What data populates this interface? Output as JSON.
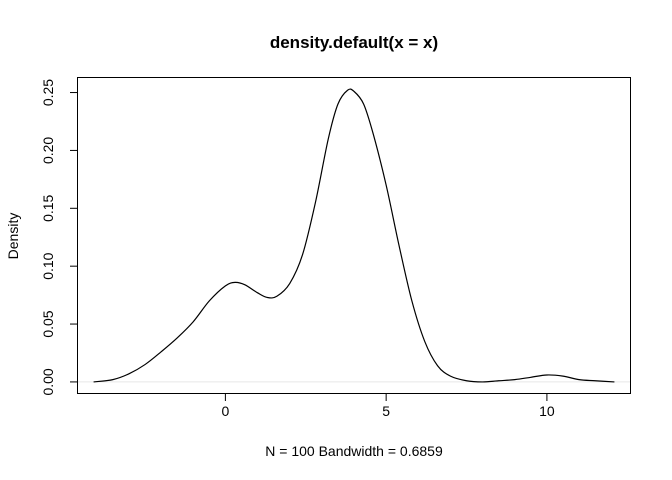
{
  "chart_data": {
    "type": "line",
    "title": "density.default(x = x)",
    "xlabel": "N = 100   Bandwidth = 0.6859",
    "ylabel": "Density",
    "xlim": [
      -4.6,
      12.6
    ],
    "ylim": [
      -0.01,
      0.263
    ],
    "x_ticks": [
      0,
      5,
      10
    ],
    "x_tick_labels": [
      "0",
      "5",
      "10"
    ],
    "y_ticks": [
      0.0,
      0.05,
      0.1,
      0.15,
      0.2,
      0.25
    ],
    "y_tick_labels": [
      "0.00",
      "0.05",
      "0.10",
      "0.15",
      "0.20",
      "0.25"
    ],
    "zero_line": true,
    "series": [
      {
        "x": [
          -4.1,
          -3.5,
          -3.0,
          -2.5,
          -2.0,
          -1.5,
          -1.0,
          -0.5,
          0.0,
          0.3,
          0.6,
          1.0,
          1.3,
          1.6,
          2.0,
          2.4,
          2.8,
          3.2,
          3.5,
          3.8,
          4.0,
          4.3,
          4.6,
          5.0,
          5.4,
          5.8,
          6.2,
          6.6,
          7.0,
          7.5,
          8.0,
          8.5,
          9.0,
          9.5,
          10.0,
          10.5,
          11.0,
          11.5,
          12.1
        ],
        "y": [
          0.0,
          0.002,
          0.007,
          0.015,
          0.026,
          0.038,
          0.052,
          0.07,
          0.083,
          0.086,
          0.084,
          0.077,
          0.073,
          0.074,
          0.085,
          0.11,
          0.155,
          0.21,
          0.24,
          0.252,
          0.251,
          0.24,
          0.214,
          0.17,
          0.118,
          0.07,
          0.035,
          0.014,
          0.005,
          0.001,
          0.0,
          0.001,
          0.002,
          0.004,
          0.006,
          0.005,
          0.002,
          0.001,
          0.0
        ]
      }
    ]
  }
}
